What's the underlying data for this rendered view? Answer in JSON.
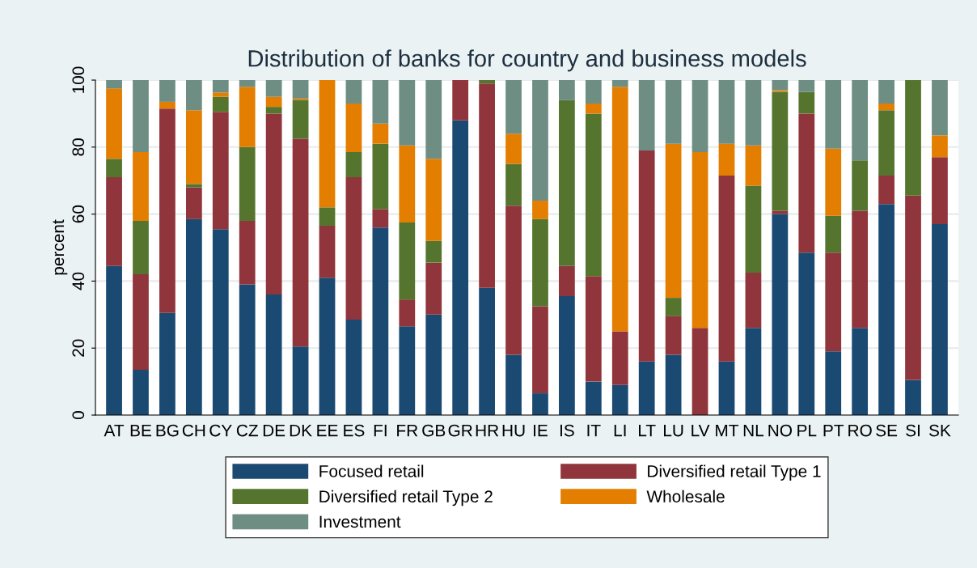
{
  "chart_data": {
    "type": "bar",
    "stacked": true,
    "title": "Distribution of banks for country and business models",
    "ylabel": "percent",
    "categories": [
      "AT",
      "BE",
      "BG",
      "CH",
      "CY",
      "CZ",
      "DE",
      "DK",
      "EE",
      "ES",
      "FI",
      "FR",
      "GB",
      "GR",
      "HR",
      "HU",
      "IE",
      "IS",
      "IT",
      "LI",
      "LT",
      "LU",
      "LV",
      "MT",
      "NL",
      "NO",
      "PL",
      "PT",
      "RO",
      "SE",
      "SI",
      "SK"
    ],
    "series": [
      {
        "name": "Focused retail",
        "color": "#1a4a72",
        "values": [
          44.5,
          13.5,
          30.5,
          58.5,
          55.5,
          39,
          36,
          20.5,
          41,
          28.5,
          56,
          26.5,
          30,
          88,
          38,
          18,
          6.5,
          35.5,
          10,
          9,
          16,
          18,
          0,
          16,
          26,
          60,
          48.5,
          19,
          26,
          63,
          10.5,
          57
        ]
      },
      {
        "name": "Diversified retail Type 1",
        "color": "#90353b",
        "values": [
          26.5,
          28.5,
          61,
          9.5,
          35,
          19,
          54,
          62,
          15.5,
          42.5,
          5.5,
          8,
          15.5,
          12,
          61,
          44.5,
          26,
          9,
          31.5,
          16,
          63,
          11.5,
          26,
          55.5,
          16.5,
          1,
          41.5,
          29.5,
          35,
          8.5,
          55,
          20
        ]
      },
      {
        "name": "Diversified retail Type 2",
        "color": "#55752f",
        "values": [
          5.5,
          16,
          0,
          1,
          4.5,
          22,
          2,
          11.5,
          5.5,
          7.5,
          19.5,
          23,
          6.5,
          0,
          1,
          12.5,
          26,
          49.5,
          48.5,
          0,
          0,
          5.5,
          0,
          0,
          26,
          35.5,
          6.5,
          11,
          15,
          19.5,
          34.5,
          0
        ]
      },
      {
        "name": "Wholesale",
        "color": "#e37e00",
        "values": [
          21,
          20.5,
          2,
          22,
          1.3,
          18,
          3,
          0.5,
          38,
          14.5,
          6,
          23,
          24.5,
          0,
          0,
          9,
          5.5,
          0,
          3,
          73,
          0,
          46,
          52.5,
          9.5,
          12,
          0.5,
          0,
          20,
          0,
          2,
          0,
          6.5
        ]
      },
      {
        "name": "Investment",
        "color": "#6e8e84",
        "values": [
          2.5,
          21.5,
          6.5,
          9,
          3.7,
          2,
          5,
          5.5,
          0,
          7,
          13,
          19.5,
          23.5,
          0,
          0,
          16,
          36,
          6,
          7,
          2,
          21,
          19,
          21.5,
          19,
          19.5,
          3,
          3.5,
          20.5,
          24,
          7,
          0,
          16.5
        ]
      }
    ],
    "ylim": [
      0,
      100
    ],
    "yticks": [
      0,
      20,
      40,
      60,
      80,
      100
    ],
    "grid": "y",
    "legend": "bottom"
  }
}
